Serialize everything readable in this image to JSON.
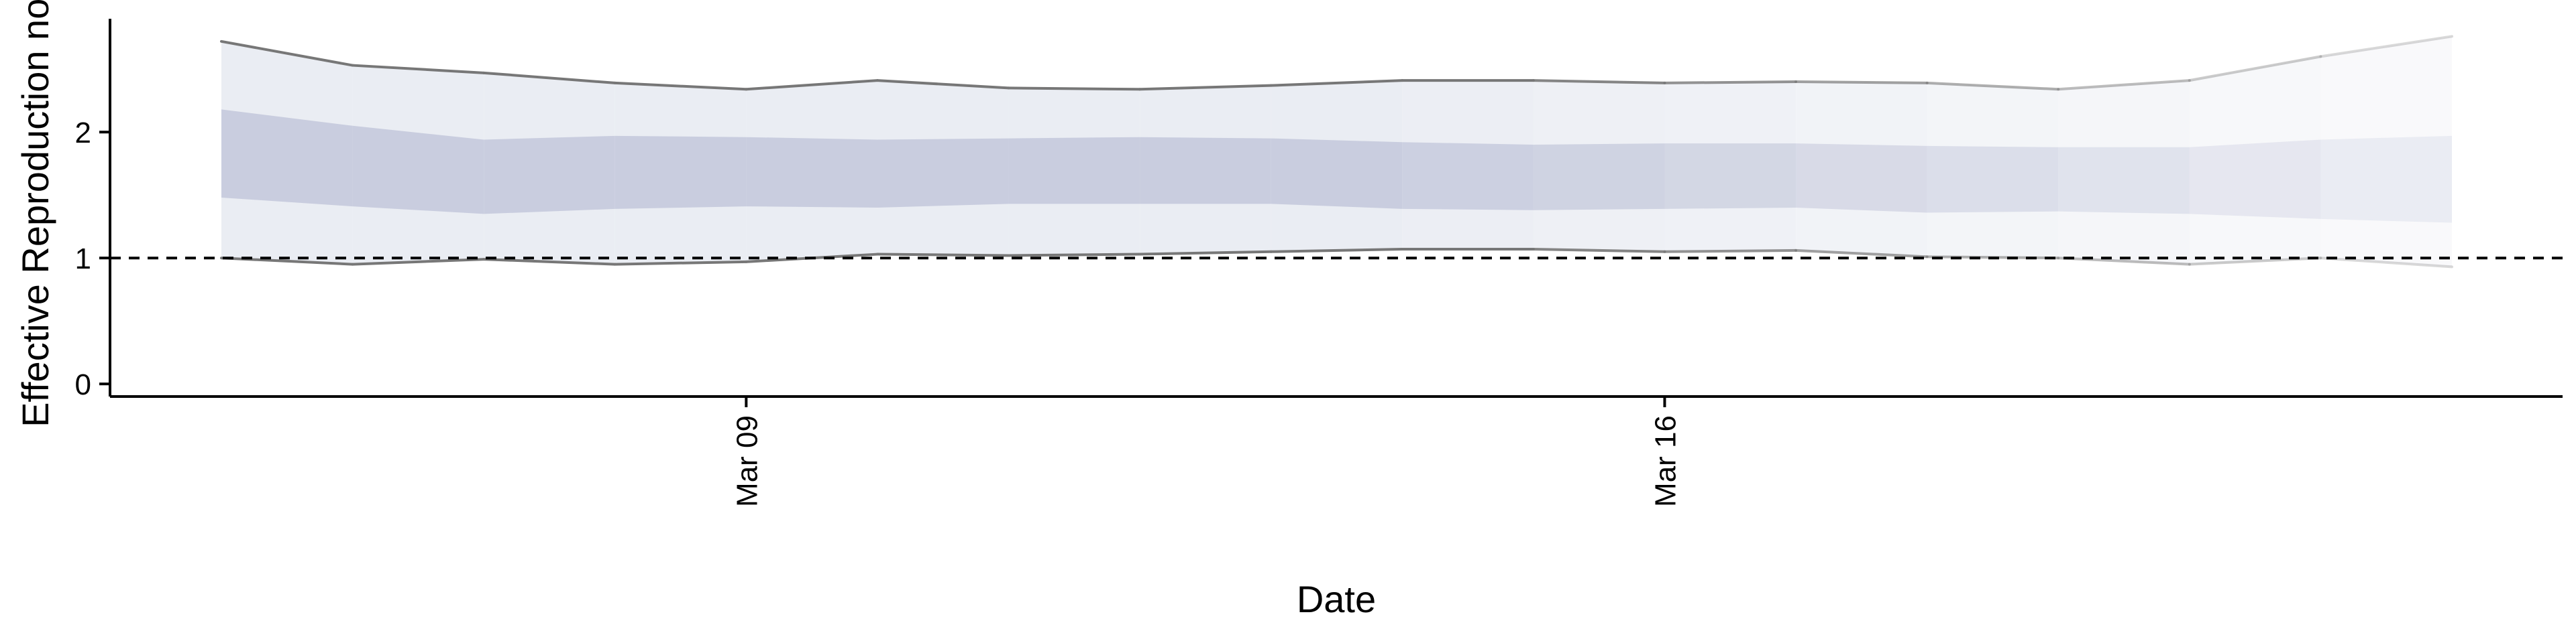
{
  "chart_data": {
    "type": "area",
    "title": "",
    "xlabel": "Date",
    "ylabel": "Effective Reproduction no.",
    "ylim": [
      -0.1,
      2.9
    ],
    "yticks": [
      0,
      1,
      2
    ],
    "ytick_labels": [
      "0",
      "1",
      "2"
    ],
    "xticks": [
      {
        "index": 4,
        "label": "Mar 09"
      },
      {
        "index": 11,
        "label": "Mar 16"
      }
    ],
    "reference_line": {
      "value": 1,
      "style": "dashed"
    },
    "grid": false,
    "legend": "none",
    "x_day_index": [
      0,
      1,
      2,
      3,
      4,
      5,
      6,
      7,
      8,
      9,
      10,
      11,
      12,
      13,
      14,
      15,
      16,
      17
    ],
    "series": [
      {
        "name": "outer interval upper",
        "values": [
          2.72,
          2.53,
          2.47,
          2.39,
          2.34,
          2.41,
          2.35,
          2.34,
          2.37,
          2.41,
          2.41,
          2.39,
          2.4,
          2.39,
          2.34,
          2.41,
          2.6,
          2.76
        ]
      },
      {
        "name": "outer interval lower",
        "values": [
          1.0,
          0.95,
          0.99,
          0.95,
          0.97,
          1.03,
          1.02,
          1.03,
          1.05,
          1.07,
          1.07,
          1.05,
          1.06,
          1.01,
          1.0,
          0.95,
          1.0,
          0.93
        ]
      },
      {
        "name": "inner interval upper",
        "values": [
          2.18,
          2.05,
          1.94,
          1.97,
          1.96,
          1.94,
          1.95,
          1.96,
          1.95,
          1.92,
          1.9,
          1.91,
          1.91,
          1.89,
          1.88,
          1.88,
          1.94,
          1.97
        ]
      },
      {
        "name": "inner interval lower",
        "values": [
          1.48,
          1.41,
          1.35,
          1.39,
          1.41,
          1.4,
          1.43,
          1.43,
          1.43,
          1.39,
          1.38,
          1.39,
          1.4,
          1.36,
          1.37,
          1.35,
          1.31,
          1.28
        ]
      }
    ],
    "colors": {
      "outer_band": "#e8ebf2",
      "inner_band": "#c7cbdd",
      "boundary_line": "#777777",
      "axis": "#000000"
    }
  }
}
